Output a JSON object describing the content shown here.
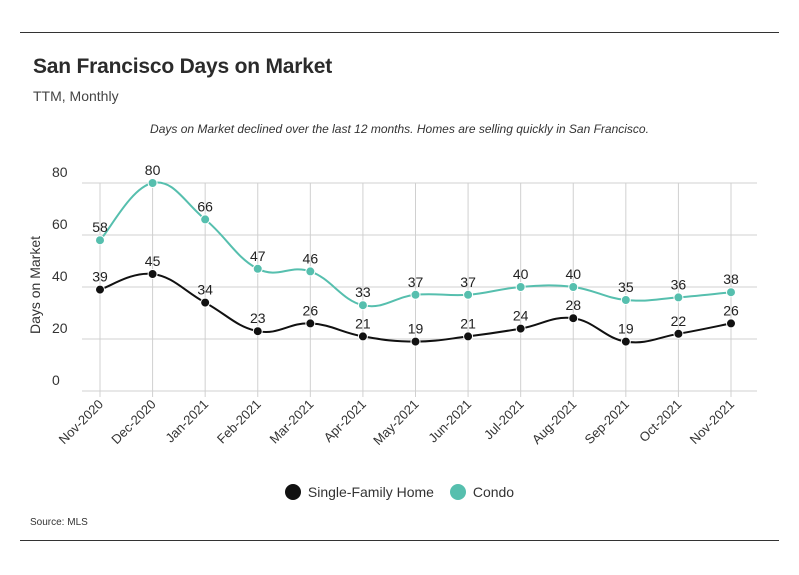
{
  "header": {
    "title": "San Francisco Days on Market",
    "subtitle": "TTM, Monthly",
    "note": "Days on Market declined over the last 12 months. Homes are selling quickly in San Francisco."
  },
  "footer": {
    "source": "Source:  MLS"
  },
  "colors": {
    "single_family": "#111111",
    "condo": "#56bfae",
    "grid": "#d0d0d0"
  },
  "chart_data": {
    "type": "line",
    "title": "San Francisco Days on Market",
    "subtitle": "TTM, Monthly",
    "ylabel": "Days on Market",
    "xlabel": "",
    "ylim": [
      0,
      80
    ],
    "yticks": [
      0,
      20,
      40,
      60,
      80
    ],
    "grid": true,
    "legend_position": "bottom",
    "categories": [
      "Nov-2020",
      "Dec-2020",
      "Jan-2021",
      "Feb-2021",
      "Mar-2021",
      "Apr-2021",
      "May-2021",
      "Jun-2021",
      "Jul-2021",
      "Aug-2021",
      "Sep-2021",
      "Oct-2021",
      "Nov-2021"
    ],
    "series": [
      {
        "name": "Single-Family Home",
        "color": "#111111",
        "values": [
          39,
          45,
          34,
          23,
          26,
          21,
          19,
          21,
          24,
          28,
          19,
          22,
          26
        ]
      },
      {
        "name": "Condo",
        "color": "#56bfae",
        "values": [
          58,
          80,
          66,
          47,
          46,
          33,
          37,
          37,
          40,
          40,
          35,
          36,
          38
        ]
      }
    ]
  }
}
